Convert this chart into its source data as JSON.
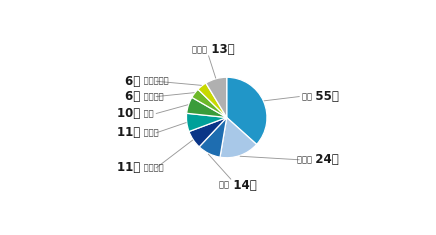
{
  "labels": [
    "中国",
    "インド",
    "タイ",
    "ブラジル",
    "トルコ",
    "米国",
    "イタリア",
    "ポーランド",
    "その他"
  ],
  "values": [
    55,
    24,
    14,
    11,
    11,
    10,
    6,
    6,
    13
  ],
  "colors": [
    "#2196C8",
    "#A8C8E8",
    "#1E6DB0",
    "#0A3587",
    "#00A099",
    "#3A9C3A",
    "#6CB82A",
    "#C8D800",
    "#B0B0B0"
  ],
  "label_counts": [
    "55社",
    "24社",
    "14社",
    "11社",
    "11社",
    "10社",
    "6社",
    "6社",
    "13社"
  ],
  "startangle": 90,
  "background_color": "#ffffff",
  "text_positions": [
    [
      2.15,
      0.52,
      "left",
      "中国",
      "55社"
    ],
    [
      2.15,
      -1.05,
      "left",
      "インド",
      "24社"
    ],
    [
      0.1,
      -1.68,
      "center",
      "タイ",
      "14社"
    ],
    [
      -2.1,
      -1.25,
      "right",
      "ブラジル",
      "11社"
    ],
    [
      -2.1,
      -0.38,
      "right",
      "トルコ",
      "11社"
    ],
    [
      -2.1,
      0.1,
      "right",
      "米国",
      "10社"
    ],
    [
      -2.1,
      0.52,
      "right",
      "イタリア",
      "6社"
    ],
    [
      -2.1,
      0.9,
      "right",
      "ポーランド",
      "6社"
    ],
    [
      -0.45,
      1.68,
      "center",
      "その他",
      "13社"
    ]
  ]
}
